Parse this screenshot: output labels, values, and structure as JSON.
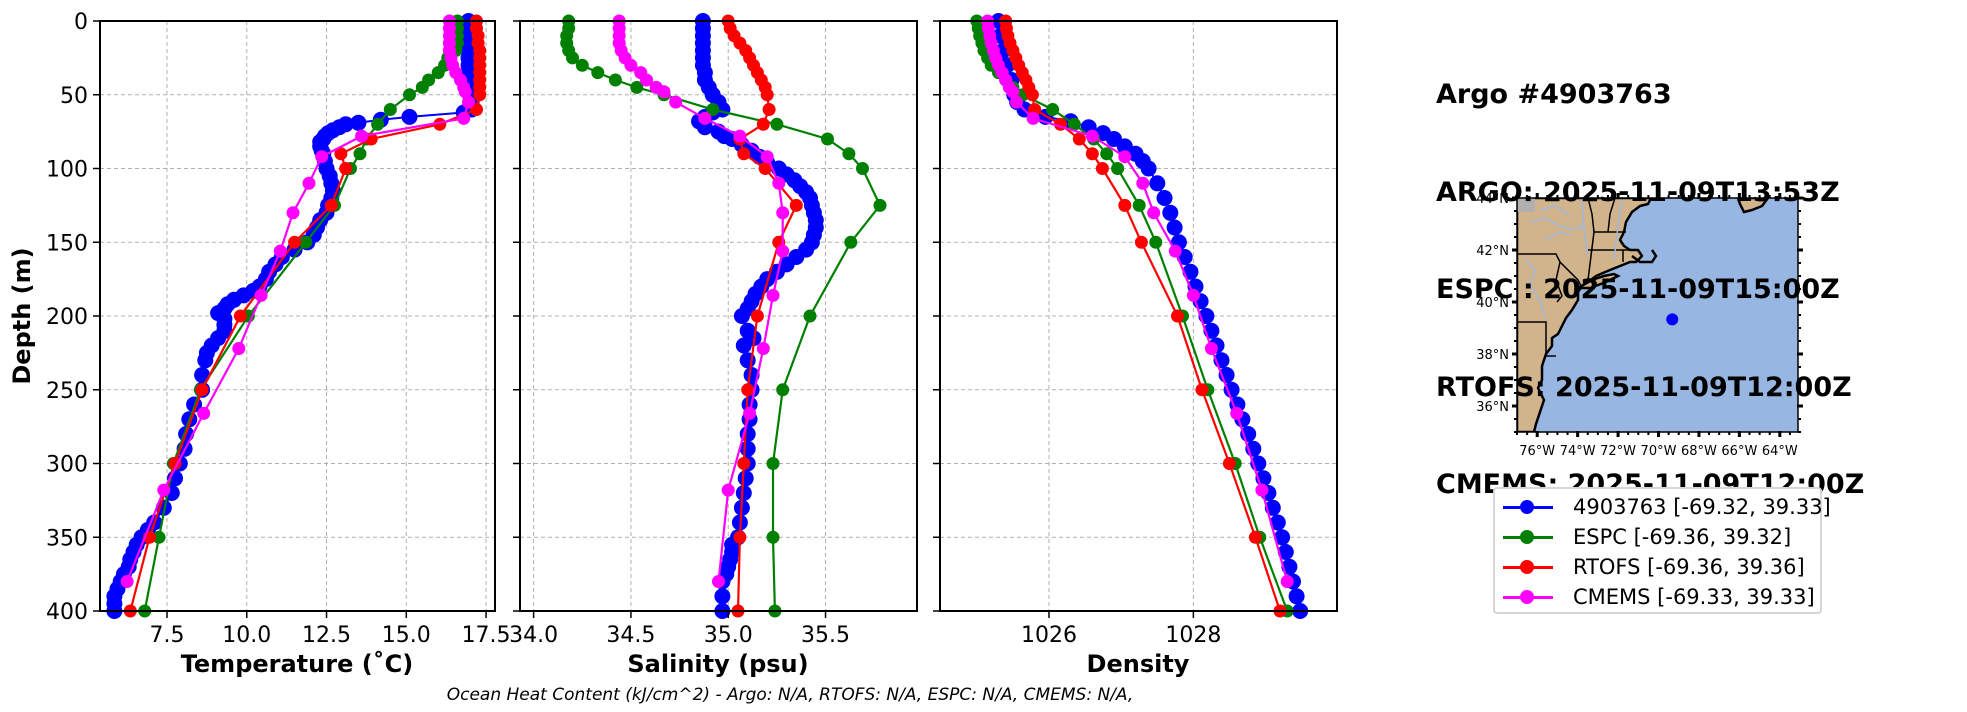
{
  "info": {
    "lines": [
      "Argo #4903763",
      "ARGO: 2025-11-09T13:53Z",
      "ESPC : 2025-11-09T15:00Z",
      "RTOFS: 2025-11-09T12:00Z",
      "CMEMS: 2025-11-09T12:00Z"
    ]
  },
  "footer": "Ocean Heat Content (kJ/cm^2) - Argo: N/A,  RTOFS: N/A,  ESPC: N/A,  CMEMS: N/A,",
  "colors": {
    "argo": "#0000ff",
    "espc": "#008000",
    "rtofs": "#ff0000",
    "cmems": "#ff00ff",
    "ocean": "#97b6e1",
    "land": "#d2b48c",
    "river": "#9fb8e0",
    "grid": "#b0b0b0"
  },
  "legend": [
    {
      "key": "argo",
      "label": "4903763 [-69.32, 39.33]"
    },
    {
      "key": "espc",
      "label": "ESPC [-69.36, 39.32]"
    },
    {
      "key": "rtofs",
      "label": "RTOFS [-69.36, 39.36]"
    },
    {
      "key": "cmems",
      "label": "CMEMS [-69.33, 39.33]"
    }
  ],
  "map": {
    "lon_range": [
      -77.0,
      -63.1
    ],
    "lat_range": [
      35.0,
      44.0
    ],
    "lon_ticks": [
      -76,
      -74,
      -72,
      -70,
      -68,
      -66,
      -64
    ],
    "lon_tick_labels": [
      "76°W",
      "74°W",
      "72°W",
      "70°W",
      "68°W",
      "66°W",
      "64°W"
    ],
    "lat_ticks": [
      36,
      38,
      40,
      42,
      44
    ],
    "lat_tick_labels": [
      "36°N",
      "38°N",
      "40°N",
      "42°N",
      "44°N"
    ],
    "float_position": {
      "lon": -69.32,
      "lat": 39.33
    }
  },
  "chart_data": [
    {
      "type": "line",
      "title": "",
      "xlabel": "Temperature (˚C)",
      "ylabel": "Depth (m)",
      "xlim": [
        5.4,
        17.78
      ],
      "ylim": [
        400,
        0
      ],
      "xticks": [
        7.5,
        10.0,
        12.5,
        15.0,
        17.5
      ],
      "xtick_labels": [
        "7.5",
        "10.0",
        "12.5",
        "15.0",
        "17.5"
      ],
      "yticks": [
        0,
        50,
        100,
        150,
        200,
        250,
        300,
        350,
        400
      ],
      "ytick_labels": [
        "0",
        "50",
        "100",
        "150",
        "200",
        "250",
        "300",
        "350",
        "400"
      ],
      "grid": true,
      "series": [
        {
          "name": "4903763",
          "key": "argo",
          "marker_size": "large",
          "depth": [
            0,
            5,
            10,
            15,
            20,
            25,
            30,
            35,
            40,
            45,
            50,
            55,
            60,
            62,
            65,
            67,
            69,
            70,
            72,
            74,
            76,
            78,
            80,
            82,
            85,
            88,
            90,
            95,
            100,
            105,
            110,
            115,
            120,
            125,
            130,
            135,
            140,
            145,
            150,
            155,
            160,
            165,
            170,
            175,
            180,
            183,
            186,
            189,
            192,
            195,
            198,
            202,
            206,
            210,
            215,
            220,
            225,
            230,
            240,
            250,
            260,
            270,
            280,
            290,
            300,
            310,
            320,
            330,
            340,
            345,
            350,
            355,
            360,
            365,
            370,
            375,
            380,
            385,
            390,
            395,
            400
          ],
          "values": [
            16.95,
            16.95,
            16.95,
            16.95,
            16.95,
            16.95,
            16.95,
            16.95,
            16.97,
            17.0,
            17.0,
            17.05,
            17.05,
            16.8,
            15.1,
            14.2,
            13.5,
            13.1,
            12.9,
            12.7,
            12.55,
            12.45,
            12.4,
            12.3,
            12.3,
            12.35,
            12.4,
            12.45,
            12.5,
            12.6,
            12.65,
            12.7,
            12.65,
            12.55,
            12.5,
            12.3,
            12.2,
            12.1,
            11.9,
            11.5,
            11.1,
            10.9,
            10.7,
            10.6,
            10.4,
            10.2,
            9.9,
            9.6,
            9.4,
            9.3,
            9.1,
            9.3,
            9.3,
            9.3,
            9.1,
            8.9,
            8.75,
            8.7,
            8.6,
            8.6,
            8.35,
            8.2,
            8.1,
            8.05,
            7.9,
            7.75,
            7.65,
            7.4,
            7.1,
            6.9,
            6.7,
            6.55,
            6.45,
            6.35,
            6.3,
            6.15,
            6.05,
            5.95,
            5.85,
            5.85,
            5.85
          ]
        },
        {
          "name": "ESPC",
          "key": "espc",
          "marker_size": "small",
          "depth": [
            0,
            5,
            10,
            15,
            20,
            25,
            30,
            35,
            40,
            45,
            50,
            60,
            70,
            80,
            90,
            100,
            125,
            150,
            200,
            250,
            300,
            350,
            400
          ],
          "values": [
            16.6,
            16.6,
            16.6,
            16.6,
            16.55,
            16.3,
            16.2,
            16.0,
            15.7,
            15.5,
            15.1,
            14.5,
            14.1,
            13.75,
            13.55,
            13.25,
            12.75,
            11.85,
            10.05,
            8.55,
            7.7,
            7.25,
            6.8
          ]
        },
        {
          "name": "RTOFS",
          "key": "rtofs",
          "marker_size": "small",
          "depth": [
            0,
            5,
            10,
            15,
            20,
            25,
            30,
            35,
            40,
            45,
            50,
            60,
            70,
            80,
            90,
            100,
            125,
            150,
            200,
            250,
            300,
            350,
            400
          ],
          "values": [
            17.2,
            17.2,
            17.25,
            17.25,
            17.3,
            17.3,
            17.3,
            17.3,
            17.3,
            17.3,
            17.3,
            17.2,
            16.05,
            13.9,
            12.95,
            13.1,
            12.65,
            11.5,
            9.8,
            8.6,
            7.75,
            6.95,
            6.35
          ]
        },
        {
          "name": "CMEMS",
          "key": "cmems",
          "marker_size": "small",
          "depth": [
            0,
            5,
            10,
            15,
            20,
            25,
            30,
            35,
            40,
            45,
            48,
            55,
            66,
            78,
            92,
            110,
            130,
            156,
            186,
            222,
            266,
            318,
            380
          ],
          "values": [
            16.35,
            16.35,
            16.35,
            16.35,
            16.35,
            16.4,
            16.45,
            16.55,
            16.7,
            16.8,
            16.85,
            16.95,
            16.8,
            13.6,
            12.35,
            11.95,
            11.45,
            11.05,
            10.45,
            9.75,
            8.65,
            7.4,
            6.25
          ]
        }
      ]
    },
    {
      "type": "line",
      "title": "",
      "xlabel": "Salinity (psu)",
      "ylabel": "",
      "xlim": [
        33.93,
        35.97
      ],
      "ylim": [
        400,
        0
      ],
      "xticks": [
        34.0,
        34.5,
        35.0,
        35.5
      ],
      "xtick_labels": [
        "34.0",
        "34.5",
        "35.0",
        "35.5"
      ],
      "grid": true,
      "series": [
        {
          "name": "4903763",
          "key": "argo",
          "marker_size": "large",
          "depth": [
            0,
            5,
            10,
            15,
            20,
            25,
            30,
            35,
            40,
            45,
            50,
            55,
            60,
            62,
            65,
            68,
            72,
            75,
            78,
            80,
            84,
            88,
            92,
            96,
            100,
            104,
            108,
            112,
            116,
            120,
            125,
            130,
            135,
            140,
            145,
            150,
            155,
            160,
            165,
            170,
            175,
            180,
            185,
            190,
            195,
            200,
            210,
            215,
            220,
            230,
            240,
            250,
            260,
            270,
            280,
            290,
            300,
            310,
            320,
            330,
            340,
            350,
            355,
            360,
            365,
            370,
            375,
            380,
            390,
            400
          ],
          "values": [
            34.87,
            34.87,
            34.87,
            34.87,
            34.87,
            34.87,
            34.87,
            34.88,
            34.88,
            34.9,
            34.92,
            34.95,
            34.97,
            34.92,
            34.88,
            34.85,
            34.88,
            34.95,
            34.98,
            35.02,
            35.07,
            35.12,
            35.16,
            35.2,
            35.26,
            35.3,
            35.34,
            35.37,
            35.4,
            35.42,
            35.43,
            35.44,
            35.45,
            35.45,
            35.44,
            35.43,
            35.4,
            35.35,
            35.3,
            35.25,
            35.2,
            35.17,
            35.14,
            35.12,
            35.1,
            35.07,
            35.1,
            35.13,
            35.08,
            35.1,
            35.12,
            35.12,
            35.11,
            35.11,
            35.1,
            35.1,
            35.1,
            35.09,
            35.08,
            35.07,
            35.06,
            35.05,
            35.02,
            35.02,
            35.01,
            35.0,
            34.99,
            34.97,
            34.97,
            34.97
          ]
        },
        {
          "name": "ESPC",
          "key": "espc",
          "marker_size": "small",
          "depth": [
            0,
            5,
            10,
            15,
            20,
            25,
            30,
            35,
            40,
            45,
            50,
            60,
            70,
            80,
            90,
            100,
            125,
            150,
            200,
            250,
            300,
            350,
            400
          ],
          "values": [
            34.18,
            34.18,
            34.17,
            34.17,
            34.18,
            34.2,
            34.25,
            34.33,
            34.42,
            34.53,
            34.67,
            34.92,
            35.25,
            35.51,
            35.62,
            35.69,
            35.78,
            35.63,
            35.42,
            35.28,
            35.23,
            35.23,
            35.24
          ]
        },
        {
          "name": "RTOFS",
          "key": "rtofs",
          "marker_size": "small",
          "depth": [
            0,
            5,
            10,
            15,
            20,
            25,
            30,
            35,
            40,
            45,
            50,
            60,
            70,
            80,
            90,
            100,
            125,
            150,
            200,
            250,
            300,
            350,
            400
          ],
          "values": [
            35.0,
            35.01,
            35.03,
            35.06,
            35.09,
            35.11,
            35.13,
            35.15,
            35.17,
            35.19,
            35.2,
            35.21,
            35.18,
            35.06,
            35.08,
            35.19,
            35.35,
            35.26,
            35.15,
            35.1,
            35.08,
            35.06,
            35.05
          ]
        },
        {
          "name": "CMEMS",
          "key": "cmems",
          "marker_size": "small",
          "depth": [
            0,
            5,
            10,
            15,
            20,
            25,
            30,
            35,
            40,
            45,
            48,
            55,
            66,
            78,
            92,
            110,
            130,
            156,
            186,
            222,
            266,
            318,
            380
          ],
          "values": [
            34.44,
            34.44,
            34.44,
            34.44,
            34.45,
            34.47,
            34.5,
            34.55,
            34.58,
            34.63,
            34.67,
            34.73,
            34.88,
            35.06,
            35.2,
            35.26,
            35.28,
            35.28,
            35.23,
            35.18,
            35.11,
            35.0,
            34.95
          ]
        }
      ]
    },
    {
      "type": "line",
      "title": "",
      "xlabel": "Density",
      "ylabel": "",
      "xlim": [
        1024.49,
        1029.99
      ],
      "ylim": [
        400,
        0
      ],
      "xticks": [
        1026,
        1028
      ],
      "xtick_labels": [
        "1026",
        "1028"
      ],
      "grid": true,
      "series": [
        {
          "name": "4903763",
          "key": "argo",
          "marker_size": "large",
          "depth": [
            0,
            10,
            20,
            30,
            40,
            50,
            55,
            60,
            65,
            68,
            72,
            76,
            80,
            85,
            90,
            95,
            100,
            110,
            120,
            130,
            140,
            150,
            160,
            170,
            180,
            190,
            200,
            210,
            220,
            230,
            240,
            250,
            260,
            270,
            280,
            290,
            300,
            310,
            320,
            330,
            340,
            350,
            360,
            370,
            380,
            390,
            400
          ],
          "values": [
            1025.3,
            1025.33,
            1025.37,
            1025.42,
            1025.48,
            1025.52,
            1025.56,
            1025.66,
            1025.95,
            1026.3,
            1026.55,
            1026.75,
            1026.9,
            1027.05,
            1027.2,
            1027.3,
            1027.38,
            1027.5,
            1027.6,
            1027.68,
            1027.74,
            1027.8,
            1027.88,
            1027.96,
            1028.03,
            1028.1,
            1028.18,
            1028.25,
            1028.32,
            1028.39,
            1028.46,
            1028.53,
            1028.61,
            1028.68,
            1028.76,
            1028.83,
            1028.9,
            1028.97,
            1029.04,
            1029.1,
            1029.17,
            1029.23,
            1029.28,
            1029.33,
            1029.38,
            1029.43,
            1029.48
          ]
        },
        {
          "name": "ESPC",
          "key": "espc",
          "marker_size": "small",
          "depth": [
            0,
            5,
            10,
            15,
            20,
            25,
            30,
            35,
            40,
            45,
            50,
            60,
            70,
            80,
            90,
            100,
            125,
            150,
            200,
            250,
            300,
            350,
            400
          ],
          "values": [
            1025.0,
            1025.02,
            1025.04,
            1025.07,
            1025.1,
            1025.15,
            1025.2,
            1025.3,
            1025.4,
            1025.5,
            1025.64,
            1026.05,
            1026.35,
            1026.62,
            1026.8,
            1026.95,
            1027.25,
            1027.48,
            1027.85,
            1028.2,
            1028.58,
            1028.92,
            1029.3
          ]
        },
        {
          "name": "RTOFS",
          "key": "rtofs",
          "marker_size": "small",
          "depth": [
            0,
            5,
            10,
            15,
            20,
            25,
            30,
            35,
            40,
            45,
            50,
            60,
            70,
            80,
            90,
            100,
            125,
            150,
            200,
            250,
            300,
            350,
            400
          ],
          "values": [
            1025.4,
            1025.41,
            1025.43,
            1025.46,
            1025.5,
            1025.54,
            1025.58,
            1025.63,
            1025.68,
            1025.72,
            1025.77,
            1025.8,
            1026.16,
            1026.42,
            1026.6,
            1026.74,
            1027.05,
            1027.28,
            1027.78,
            1028.12,
            1028.5,
            1028.86,
            1029.2
          ]
        },
        {
          "name": "CMEMS",
          "key": "cmems",
          "marker_size": "small",
          "depth": [
            0,
            5,
            10,
            15,
            20,
            25,
            30,
            35,
            40,
            45,
            48,
            55,
            66,
            78,
            92,
            110,
            130,
            156,
            186,
            222,
            266,
            318,
            380
          ],
          "values": [
            1025.15,
            1025.16,
            1025.18,
            1025.2,
            1025.23,
            1025.26,
            1025.3,
            1025.35,
            1025.4,
            1025.45,
            1025.5,
            1025.55,
            1025.78,
            1026.6,
            1027.05,
            1027.3,
            1027.45,
            1027.75,
            1028.0,
            1028.25,
            1028.6,
            1028.95,
            1029.3
          ]
        }
      ]
    }
  ]
}
